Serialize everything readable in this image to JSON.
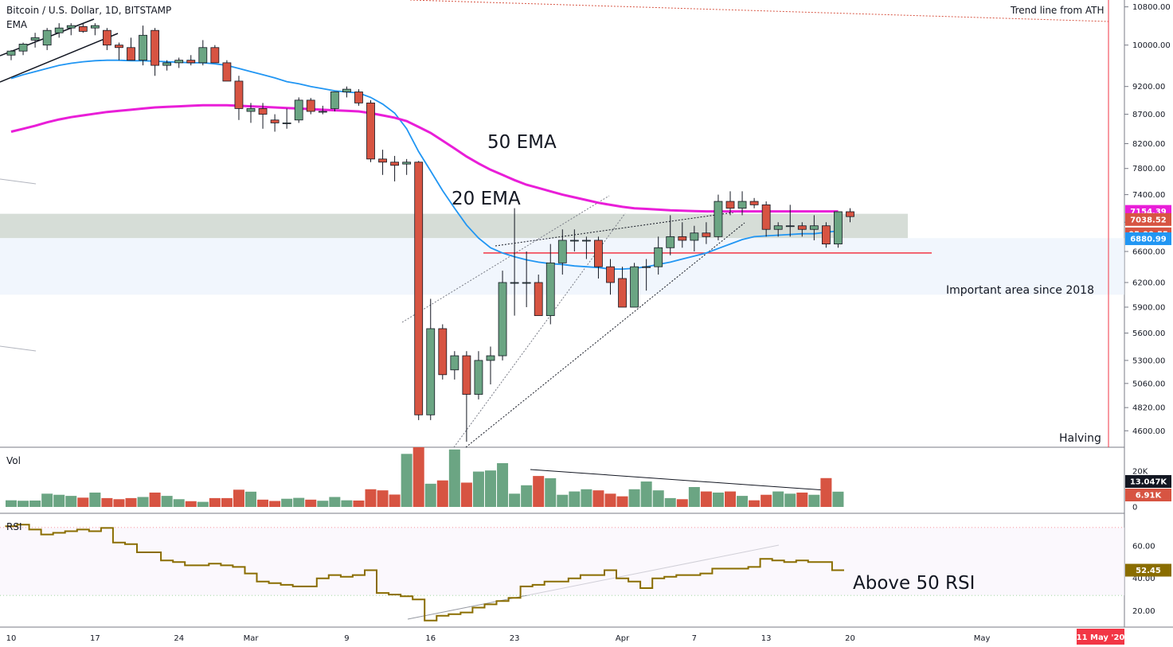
{
  "header": {
    "symbol_title": "Bitcoin / U.S. Dollar, 1D, BITSTAMP",
    "ema_label": "EMA"
  },
  "panes": {
    "volume_label": "Vol",
    "rsi_label": "RSI"
  },
  "annotations": {
    "ema50": "50 EMA",
    "ema20": "20 EMA",
    "important_area": "Important area since 2018",
    "trendline_ath": "Trend line from ATH",
    "halving": "Halving",
    "above50rsi": "Above 50 RSI"
  },
  "colors": {
    "up": "#6ba583",
    "down": "#d75442",
    "ema50": "#e91ed8",
    "ema20": "#2196f3",
    "rsi": "#8a6d00",
    "support": "#f23645",
    "zone_gray": "#c8d1c9",
    "zone_blue": "#e8f0fb",
    "badge_dark": "#131722",
    "halving_line": "#f23645"
  },
  "chart_data": [
    {
      "type": "candlestick",
      "title": "Bitcoin / U.S. Dollar, 1D, BITSTAMP",
      "ylim": [
        4450,
        10950
      ],
      "y_scale": "log",
      "y_ticks": [
        "10800.00",
        "10000.00",
        "9200.00",
        "8700.00",
        "8200.00",
        "7800.00",
        "7400.00",
        "7000.00",
        "6600.00",
        "6200.00",
        "5900.00",
        "5600.00",
        "5300.00",
        "5060.00",
        "4820.00",
        "4600.00"
      ],
      "x_tick_labels": [
        {
          "label": "10",
          "index": 0
        },
        {
          "label": "17",
          "index": 7
        },
        {
          "label": "24",
          "index": 14
        },
        {
          "label": "Mar",
          "index": 20
        },
        {
          "label": "9",
          "index": 28
        },
        {
          "label": "16",
          "index": 35
        },
        {
          "label": "23",
          "index": 42
        },
        {
          "label": "Apr",
          "index": 51
        },
        {
          "label": "7",
          "index": 57
        },
        {
          "label": "13",
          "index": 63
        },
        {
          "label": "20",
          "index": 70
        },
        {
          "label": "May",
          "index": 81
        }
      ],
      "x_date_badge": "11 May '20",
      "dates": [
        "2020-02-08",
        "2020-02-09",
        "2020-02-10",
        "2020-02-11",
        "2020-02-12",
        "2020-02-13",
        "2020-02-14",
        "2020-02-15",
        "2020-02-16",
        "2020-02-17",
        "2020-02-18",
        "2020-02-19",
        "2020-02-20",
        "2020-02-21",
        "2020-02-22",
        "2020-02-23",
        "2020-02-24",
        "2020-02-25",
        "2020-02-26",
        "2020-02-27",
        "2020-02-28",
        "2020-02-29",
        "2020-03-01",
        "2020-03-02",
        "2020-03-03",
        "2020-03-04",
        "2020-03-05",
        "2020-03-06",
        "2020-03-07",
        "2020-03-08",
        "2020-03-09",
        "2020-03-10",
        "2020-03-11",
        "2020-03-12",
        "2020-03-13",
        "2020-03-14",
        "2020-03-15",
        "2020-03-16",
        "2020-03-17",
        "2020-03-18",
        "2020-03-19",
        "2020-03-20",
        "2020-03-21",
        "2020-03-22",
        "2020-03-23",
        "2020-03-24",
        "2020-03-25",
        "2020-03-26",
        "2020-03-27",
        "2020-03-28",
        "2020-03-29",
        "2020-03-30",
        "2020-03-31",
        "2020-04-01",
        "2020-04-02",
        "2020-04-03",
        "2020-04-04",
        "2020-04-05",
        "2020-04-06",
        "2020-04-07",
        "2020-04-08",
        "2020-04-09",
        "2020-04-10",
        "2020-04-11",
        "2020-04-12",
        "2020-04-13",
        "2020-04-14",
        "2020-04-15",
        "2020-04-16",
        "2020-04-17"
      ],
      "ohlc": [
        [
          9800,
          9900,
          9700,
          9880
        ],
        [
          9880,
          10050,
          9800,
          10020
        ],
        [
          10100,
          10250,
          9950,
          10150
        ],
        [
          10000,
          10350,
          9900,
          10300
        ],
        [
          10250,
          10450,
          10150,
          10350
        ],
        [
          10350,
          10450,
          10200,
          10400
        ],
        [
          10380,
          10450,
          10250,
          10280
        ],
        [
          10350,
          10450,
          10200,
          10400
        ],
        [
          10300,
          10350,
          9900,
          10000
        ],
        [
          10000,
          10050,
          9700,
          9950
        ],
        [
          9950,
          10150,
          9700,
          9700
        ],
        [
          9700,
          10400,
          9600,
          10200
        ],
        [
          10300,
          10350,
          9400,
          9600
        ],
        [
          9600,
          9700,
          9500,
          9650
        ],
        [
          9650,
          9750,
          9550,
          9700
        ],
        [
          9700,
          9800,
          9600,
          9650
        ],
        [
          9650,
          10100,
          9600,
          9950
        ],
        [
          9950,
          10000,
          9650,
          9650
        ],
        [
          9650,
          9700,
          9300,
          9300
        ],
        [
          9300,
          9400,
          8600,
          8800
        ],
        [
          8750,
          8900,
          8550,
          8800
        ],
        [
          8800,
          8900,
          8450,
          8700
        ],
        [
          8600,
          8700,
          8400,
          8550
        ],
        [
          8550,
          8800,
          8450,
          8550
        ],
        [
          8600,
          9000,
          8550,
          8950
        ],
        [
          8950,
          8990,
          8700,
          8750
        ],
        [
          8750,
          8850,
          8700,
          8750
        ],
        [
          8800,
          9100,
          8750,
          9100
        ],
        [
          9100,
          9200,
          9000,
          9150
        ],
        [
          9100,
          9150,
          8850,
          8900
        ],
        [
          8900,
          8950,
          7900,
          7950
        ],
        [
          7950,
          8100,
          7700,
          7900
        ],
        [
          7900,
          8000,
          7600,
          7850
        ],
        [
          7870,
          7950,
          7700,
          7900
        ],
        [
          7900,
          7920,
          4700,
          4750
        ],
        [
          4750,
          6000,
          4700,
          5650
        ],
        [
          5650,
          5700,
          5100,
          5150
        ],
        [
          5200,
          5400,
          5100,
          5350
        ],
        [
          5350,
          5400,
          4500,
          4950
        ],
        [
          4950,
          5400,
          4900,
          5300
        ],
        [
          5300,
          5450,
          5050,
          5350
        ],
        [
          5350,
          6350,
          5300,
          6200
        ],
        [
          6200,
          7200,
          5800,
          6200
        ],
        [
          6200,
          6600,
          5900,
          6200
        ],
        [
          6200,
          6300,
          5850,
          5800
        ],
        [
          5800,
          6700,
          5700,
          6450
        ],
        [
          6450,
          6900,
          6300,
          6750
        ],
        [
          6750,
          6900,
          6600,
          6750
        ],
        [
          6750,
          6800,
          6500,
          6750
        ],
        [
          6750,
          6800,
          6250,
          6400
        ],
        [
          6400,
          6500,
          6050,
          6200
        ],
        [
          6250,
          6400,
          5900,
          5900
        ],
        [
          5900,
          6450,
          5900,
          6400
        ],
        [
          6400,
          6500,
          6100,
          6400
        ],
        [
          6400,
          6800,
          6300,
          6650
        ],
        [
          6650,
          7100,
          6550,
          6800
        ],
        [
          6800,
          7000,
          6650,
          6750
        ],
        [
          6750,
          6950,
          6600,
          6850
        ],
        [
          6850,
          7000,
          6700,
          6800
        ],
        [
          6800,
          7400,
          6750,
          7300
        ],
        [
          7300,
          7450,
          7100,
          7200
        ],
        [
          7200,
          7450,
          7100,
          7300
        ],
        [
          7300,
          7350,
          7200,
          7250
        ],
        [
          7250,
          7300,
          6800,
          6900
        ],
        [
          6900,
          7000,
          6800,
          6950
        ],
        [
          6950,
          7250,
          6800,
          6950
        ],
        [
          6950,
          7000,
          6800,
          6900
        ],
        [
          6900,
          7100,
          6750,
          6950
        ],
        [
          6950,
          7000,
          6650,
          6700
        ],
        [
          6700,
          7150,
          6650,
          7150
        ],
        [
          7150,
          7200,
          7000,
          7080
        ]
      ],
      "series": [
        {
          "name": "EMA",
          "values": [
            9350,
            9420,
            9480,
            9540,
            9600,
            9640,
            9670,
            9690,
            9700,
            9700,
            9690,
            9690,
            9680,
            9670,
            9660,
            9650,
            9650,
            9630,
            9600,
            9540,
            9480,
            9420,
            9360,
            9290,
            9250,
            9200,
            9160,
            9120,
            9100,
            9080,
            9000,
            8880,
            8720,
            8450,
            8070,
            7760,
            7460,
            7200,
            6960,
            6780,
            6650,
            6580,
            6530,
            6490,
            6460,
            6440,
            6430,
            6410,
            6400,
            6390,
            6370,
            6370,
            6380,
            6400,
            6430,
            6460,
            6500,
            6540,
            6580,
            6640,
            6700,
            6760,
            6800,
            6810,
            6820,
            6830,
            6840,
            6840,
            6860,
            6880
          ]
        },
        {
          "name": "EMA 50",
          "values": [
            8400,
            8450,
            8500,
            8560,
            8610,
            8650,
            8680,
            8710,
            8740,
            8760,
            8780,
            8800,
            8820,
            8830,
            8840,
            8850,
            8860,
            8860,
            8860,
            8850,
            8840,
            8830,
            8820,
            8810,
            8800,
            8790,
            8780,
            8770,
            8760,
            8750,
            8720,
            8680,
            8640,
            8580,
            8480,
            8380,
            8250,
            8120,
            7990,
            7880,
            7780,
            7700,
            7620,
            7550,
            7500,
            7450,
            7400,
            7360,
            7320,
            7280,
            7250,
            7220,
            7200,
            7190,
            7180,
            7170,
            7165,
            7160,
            7155,
            7155,
            7155,
            7155,
            7155,
            7155,
            7155,
            7155,
            7155,
            7155,
            7155,
            7154.39
          ]
        }
      ],
      "price_badges": [
        "7154.39",
        "7038.52",
        "05:00:55",
        "6880.99"
      ],
      "zones": [
        {
          "name": "gray-zone",
          "from": 6780,
          "to": 7120
        },
        {
          "name": "blue-zone",
          "from": 6050,
          "to": 6780
        }
      ],
      "support_level": 6580
    },
    {
      "type": "bar",
      "title": "Vol",
      "y_ticks": [
        "20K",
        "0"
      ],
      "values": [
        3.0,
        2.8,
        2.9,
        6.0,
        5.5,
        5.0,
        4.2,
        6.5,
        4.0,
        3.5,
        4.0,
        4.5,
        6.5,
        5.0,
        3.5,
        2.6,
        2.3,
        4.0,
        4.0,
        7.8,
        6.9,
        3.3,
        2.7,
        3.7,
        4.1,
        3.3,
        2.8,
        4.5,
        3.0,
        2.9,
        8.0,
        7.5,
        5.6,
        24.0,
        27.0,
        10.5,
        12.0,
        26.0,
        11.0,
        16.0,
        16.5,
        19.8,
        6.0,
        9.8,
        14.0,
        13.0,
        5.5,
        7.0,
        8.0,
        7.5,
        6.0,
        4.8,
        8.0,
        11.5,
        7.5,
        4.0,
        3.5,
        9.0,
        7.0,
        6.5,
        7.0,
        5.0,
        3.0,
        5.5,
        7.0,
        6.0,
        6.5,
        5.5,
        13.047,
        6.91
      ],
      "value_unit": "K",
      "price_badges": [
        "13.047K",
        "6.91K"
      ]
    },
    {
      "type": "line",
      "title": "RSI",
      "ylim": [
        10,
        80
      ],
      "y_ticks": [
        "60.00",
        "40.00",
        "20.00"
      ],
      "values": [
        72,
        73,
        70,
        67,
        68,
        69,
        70,
        69,
        71,
        62,
        61,
        56,
        56,
        51,
        50,
        48,
        48,
        49,
        48,
        47,
        43,
        38,
        37,
        36,
        35,
        35,
        40,
        42,
        41,
        42,
        45,
        31,
        30,
        29,
        27,
        14,
        17,
        18,
        19,
        22,
        24,
        26,
        28,
        35,
        36,
        38,
        38,
        40,
        42,
        42,
        45,
        40,
        38,
        34,
        40,
        41,
        42,
        42,
        43,
        46,
        46,
        46,
        47,
        52,
        51,
        50,
        51,
        50,
        50,
        45
      ]
    }
  ]
}
